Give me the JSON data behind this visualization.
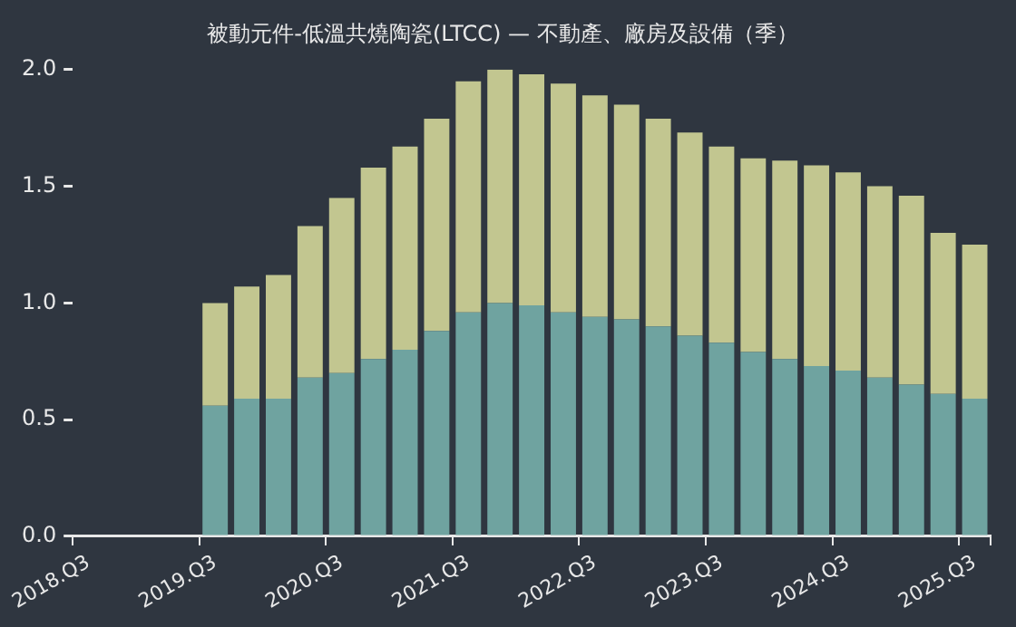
{
  "chart_data": {
    "type": "bar",
    "title": "被動元件-低溫共燒陶瓷(LTCC) — 不動產、廠房及設備（季）",
    "categories": [
      "2018.Q3",
      null,
      null,
      null,
      "2019.Q3",
      null,
      null,
      null,
      "2020.Q3",
      null,
      null,
      null,
      "2021.Q3",
      null,
      null,
      null,
      "2022.Q3",
      null,
      null,
      null,
      "2023.Q3",
      null,
      null,
      null,
      "2024.Q3",
      null,
      null,
      null,
      "2025.Q3"
    ],
    "series": [
      {
        "color": "#6fa3a0",
        "values": [
          null,
          null,
          null,
          null,
          0.56,
          0.59,
          0.59,
          0.68,
          0.7,
          0.76,
          0.8,
          0.88,
          0.96,
          1.0,
          0.99,
          0.96,
          0.94,
          0.93,
          0.9,
          0.86,
          0.83,
          0.79,
          0.76,
          0.73,
          0.71,
          0.68,
          0.65,
          0.61,
          0.59
        ]
      },
      {
        "color": "#c2c690",
        "values": [
          null,
          null,
          null,
          null,
          0.44,
          0.48,
          0.53,
          0.65,
          0.75,
          0.82,
          0.87,
          0.91,
          0.99,
          1.0,
          0.99,
          0.98,
          0.95,
          0.92,
          0.89,
          0.87,
          0.84,
          0.83,
          0.85,
          0.86,
          0.85,
          0.82,
          0.81,
          0.69,
          0.66
        ]
      }
    ],
    "stacked": true,
    "ylim": [
      0,
      2
    ],
    "yticks": [
      {
        "value": 0,
        "label": "0.0"
      },
      {
        "value": 0.5,
        "label": "0.5"
      },
      {
        "value": 1,
        "label": "1.0"
      },
      {
        "value": 1.5,
        "label": "1.5"
      },
      {
        "value": 2,
        "label": "2.0"
      }
    ],
    "grid": false,
    "legend": false
  }
}
